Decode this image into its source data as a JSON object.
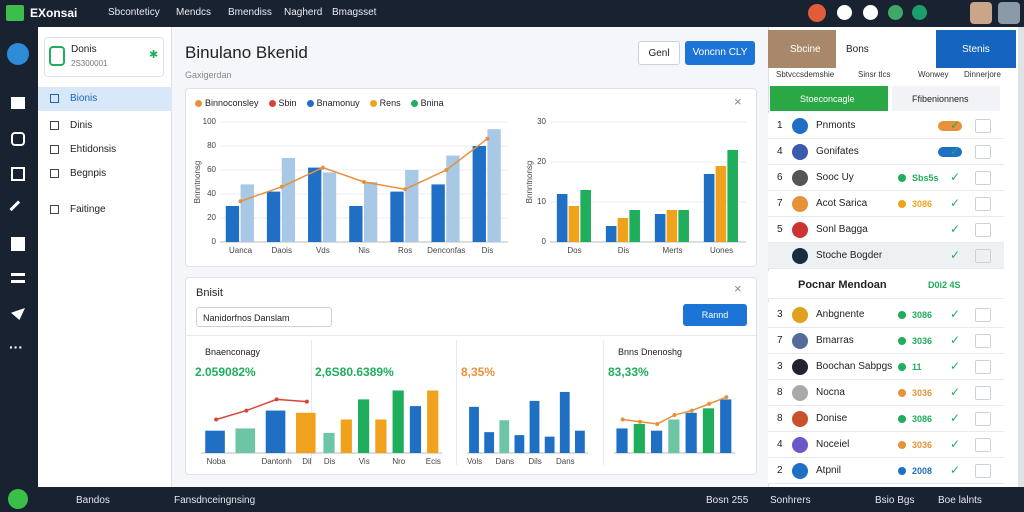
{
  "topbar": {
    "logo": "EXonsai",
    "nav": [
      "Sbconteticy",
      "Mendcs",
      "Bmendiss",
      "Nagherd",
      "Bmagsset"
    ]
  },
  "sidebar": {
    "card": {
      "title": "Donis",
      "subtitle": "2S300001"
    },
    "menu": [
      "Bionis",
      "Dinis",
      "Ehtidonsis",
      "Begnpis",
      "Faitinge"
    ],
    "active": 0
  },
  "header": {
    "title": "Binulano Bkenid",
    "subtitle": "Gaxigerdan",
    "buttons": [
      "Genl",
      "Voncnn CLY"
    ]
  },
  "overview": {
    "legend": [
      {
        "name": "Binnoconsley",
        "color": "#e8913a"
      },
      {
        "name": "Sbin",
        "color": "#d9443a"
      },
      {
        "name": "Bnamonuy",
        "color": "#1f6fc5"
      },
      {
        "name": "Rens",
        "color": "#f0a21c"
      },
      {
        "name": "Bnina",
        "color": "#1fae5b"
      }
    ],
    "charts": [
      {
        "type": "bar",
        "ylim": [
          0,
          100
        ],
        "yticks": [
          0,
          20,
          40,
          60,
          80,
          100
        ],
        "y_label": "Bnnntnonsg",
        "categories": [
          "Uanca",
          "Daois",
          "Vds",
          "Nis",
          "Ros",
          "Denconfas",
          "Dis"
        ],
        "series": [
          {
            "type": "bar",
            "color": "#1f6fc5",
            "values": [
              30,
              42,
              62,
              30,
              42,
              48,
              80
            ]
          },
          {
            "type": "bar",
            "color": "#a8c8e6",
            "values": [
              48,
              70,
              58,
              50,
              60,
              72,
              94
            ]
          },
          {
            "type": "line",
            "color": "#e8913a",
            "values": [
              34,
              46,
              62,
              50,
              44,
              60,
              86
            ]
          }
        ]
      },
      {
        "type": "bar",
        "ylim": [
          0,
          30
        ],
        "yticks": [
          0,
          10,
          20,
          30
        ],
        "y_label": "Bnnntnonsg",
        "categories": [
          "Dos",
          "Dis",
          "Merts",
          "Uones"
        ],
        "series": [
          {
            "type": "bar",
            "color": "#1f6fc5",
            "values": [
              12,
              4,
              7,
              17
            ]
          },
          {
            "type": "bar",
            "color": "#f0a21c",
            "values": [
              9,
              6,
              8,
              19
            ]
          },
          {
            "type": "bar",
            "color": "#1fae5b",
            "values": [
              13,
              8,
              8,
              23
            ]
          }
        ]
      }
    ]
  },
  "insights": {
    "title": "Bnisit",
    "search": "Nanidorfnos Danslam",
    "button": "Rannd",
    "charts": [
      {
        "type": "bar",
        "title": "Bnaenconagy",
        "value": "2.059082%",
        "accent": "#1fae5b",
        "ylim": [
          0,
          60
        ],
        "categories": [
          "Noba",
          null,
          "Dantonh",
          "Dil"
        ],
        "series": [
          {
            "type": "bar",
            "colors": [
              "#1f6fc5",
              "#6cc6a6",
              "#1f6fc5",
              "#f0a21c"
            ],
            "values": [
              20,
              22,
              38,
              36
            ]
          },
          {
            "type": "line",
            "color": "#d9443a",
            "values": [
              30,
              38,
              48,
              46
            ]
          }
        ]
      },
      {
        "type": "bar",
        "value": "2,6S80.6389%",
        "accent": "#1fae5b",
        "ylim": [
          0,
          60
        ],
        "categories": [
          "Dis",
          null,
          "Vis",
          null,
          "Nro",
          null,
          "Ecis"
        ],
        "series": [
          {
            "type": "bar",
            "colors": [
              "#6cc6a6",
              "#f0a21c",
              "#1fae5b",
              "#f0a21c",
              "#1fae5b",
              "#1f6fc5",
              "#f0a21c"
            ],
            "values": [
              18,
              30,
              48,
              30,
              56,
              42,
              56
            ]
          }
        ]
      },
      {
        "type": "bar",
        "value": "8,35%",
        "accent": "#e8913a",
        "ylim": [
          0,
          90
        ],
        "categories": [
          "Vols",
          null,
          "Dans",
          null,
          "Dils",
          null,
          "Dans",
          null
        ],
        "series": [
          {
            "type": "bar",
            "colors": [
              "#1f6fc5",
              "#1f6fc5",
              "#6cc6a6",
              "#1f6fc5",
              "#1f6fc5",
              "#1f6fc5",
              "#1f6fc5",
              "#1f6fc5"
            ],
            "values": [
              62,
              28,
              44,
              24,
              70,
              22,
              82,
              30
            ]
          }
        ]
      },
      {
        "type": "bar",
        "title": "Bnns Dnenoshg",
        "value": "83,33%",
        "accent": "#1fae5b",
        "ylim": [
          0,
          60
        ],
        "series": [
          {
            "type": "bar",
            "colors": [
              "#1f6fc5",
              "#1fae5b",
              "#1f6fc5",
              "#6cc6a6",
              "#1f6fc5",
              "#1fae5b",
              "#1f6fc5"
            ],
            "values": [
              22,
              26,
              20,
              30,
              36,
              40,
              48
            ]
          },
          {
            "type": "line",
            "color": "#e8913a",
            "values": [
              30,
              28,
              26,
              34,
              38,
              44,
              50
            ]
          }
        ]
      }
    ]
  },
  "panel": {
    "tabs": [
      "Sbcine",
      "Bons",
      "Stenis"
    ],
    "columns": [
      "Sbtvccsdemshie",
      "Sinsr tlcs",
      "Wonwey",
      "Dinnerjore"
    ],
    "filters": [
      "Stoeconcagle",
      "Ffibenionnens"
    ],
    "rows": [
      {
        "rank": 1,
        "name": "Pnmonts",
        "badge": "#e8913a"
      },
      {
        "rank": 4,
        "name": "Gonifates",
        "badge": "#1f6fc5"
      },
      {
        "rank": 6,
        "name": "Sooc Uy",
        "value": "Sbs5s",
        "color": "#1fae5b"
      },
      {
        "rank": 7,
        "name": "Acot Sarica",
        "value": "3086",
        "color": "#f0a21c"
      },
      {
        "rank": 5,
        "name": "Sonl Bagga"
      },
      {
        "name": "Stoche Bogder"
      }
    ],
    "section": {
      "name": "Pocnar Mendoan",
      "value": "D0i2 4S"
    },
    "rows2": [
      {
        "rank": 3,
        "name": "Anbgnente",
        "value": "3086",
        "color": "#1fae5b"
      },
      {
        "rank": 7,
        "name": "Bmarras",
        "value": "3036",
        "color": "#1fae5b"
      },
      {
        "rank": 3,
        "name": "Boochan Sabpgs",
        "value": "11",
        "color": "#1fae5b"
      },
      {
        "rank": 8,
        "name": "Nocna",
        "value": "3036",
        "color": "#e8913a"
      },
      {
        "rank": 8,
        "name": "Donise",
        "value": "3086",
        "color": "#1fae5b"
      },
      {
        "rank": 4,
        "name": "Noceiel",
        "value": "3036",
        "color": "#e8913a"
      },
      {
        "rank": 2,
        "name": "Atpnil",
        "value": "2008",
        "color": "#1f6fc5"
      }
    ]
  },
  "footer": {
    "left": [
      "Bandos",
      "Fansdnceingnsing"
    ],
    "right": [
      "Bosn 255",
      "Sonhrers",
      "Bsio Bgs",
      "Boe lalnts"
    ]
  }
}
